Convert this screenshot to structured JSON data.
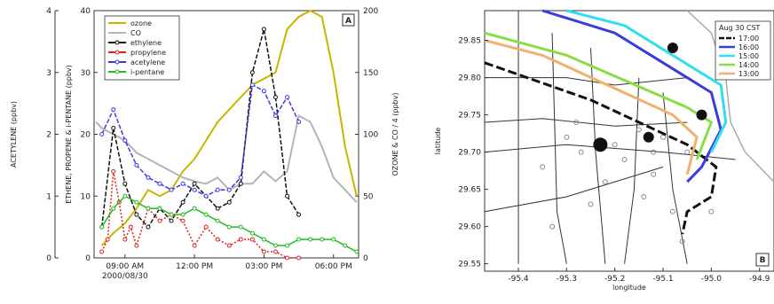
{
  "chart_data": [
    {
      "type": "line",
      "panel_label": "A",
      "yaxes": {
        "left_outer": {
          "label": "ACETYLENE (ppbv)",
          "ylim": [
            0,
            4
          ],
          "ticks": [
            "0",
            "1",
            "2",
            "3",
            "4"
          ]
        },
        "left_inner": {
          "label": "ETHENE, PROPENE & i-PENTANE (ppbv)",
          "ylim": [
            0,
            40
          ],
          "ticks": [
            "0",
            "10",
            "20",
            "30",
            "40"
          ]
        },
        "right": {
          "label": "OZONE & CO / 4 (ppbv)",
          "ylim": [
            0,
            200
          ],
          "ticks": [
            "0",
            "50",
            "100",
            "150",
            "200"
          ]
        }
      },
      "xaxis": {
        "ticks": [
          "09:00 AM",
          "12:00 PM",
          "03:00 PM",
          "06:00 PM"
        ],
        "date": "2000/08/30",
        "xlim": [
          "07:40",
          "19:05"
        ]
      },
      "legend": {
        "placement": "top",
        "entries": [
          "ozone",
          "CO",
          "ethylene",
          "propylene",
          "acetylene",
          "i-pentane"
        ]
      },
      "colors": {
        "ozone": "#c8b400",
        "CO": "#b4b4b4",
        "ethylene": "#111111",
        "propylene": "#e02020",
        "acetylene": "#3a3ae0",
        "i-pentane": "#22bb22"
      },
      "series": [
        {
          "name": "ozone",
          "axis": "right",
          "x": [
            "08:00",
            "08:30",
            "09:00",
            "09:30",
            "10:00",
            "10:30",
            "11:00",
            "11:30",
            "12:00",
            "12:30",
            "13:00",
            "13:30",
            "14:00",
            "14:30",
            "15:00",
            "15:30",
            "16:00",
            "16:30",
            "17:00",
            "17:30",
            "18:00",
            "18:30",
            "19:00"
          ],
          "y": [
            10,
            20,
            28,
            40,
            55,
            50,
            55,
            70,
            80,
            95,
            110,
            120,
            130,
            140,
            145,
            150,
            185,
            195,
            200,
            195,
            150,
            90,
            50
          ]
        },
        {
          "name": "CO",
          "axis": "right",
          "x": [
            "07:45",
            "08:00",
            "08:30",
            "09:00",
            "09:30",
            "10:00",
            "10:30",
            "11:00",
            "11:30",
            "12:00",
            "12:30",
            "13:00",
            "13:30",
            "14:00",
            "14:30",
            "15:00",
            "15:30",
            "16:00",
            "16:30",
            "17:00",
            "17:30",
            "18:00",
            "18:30",
            "19:00"
          ],
          "y": [
            110,
            105,
            100,
            95,
            85,
            80,
            75,
            70,
            65,
            62,
            60,
            65,
            55,
            60,
            60,
            70,
            62,
            70,
            115,
            110,
            90,
            65,
            55,
            45
          ]
        },
        {
          "name": "ethylene",
          "axis": "left_inner",
          "x": [
            "08:00",
            "08:30",
            "09:00",
            "09:30",
            "10:00",
            "10:30",
            "11:00",
            "11:30",
            "12:00",
            "12:30",
            "13:00",
            "13:30",
            "14:00",
            "14:30",
            "15:00",
            "15:30",
            "16:00",
            "16:30"
          ],
          "y": [
            5,
            21,
            12,
            7,
            5,
            8,
            6,
            9,
            12,
            10,
            8,
            9,
            12,
            30,
            37,
            26,
            10,
            7
          ]
        },
        {
          "name": "propylene",
          "axis": "left_inner",
          "x": [
            "08:00",
            "08:15",
            "08:30",
            "08:45",
            "09:00",
            "09:15",
            "09:30",
            "10:00",
            "10:30",
            "11:00",
            "11:30",
            "12:00",
            "12:30",
            "13:00",
            "13:30",
            "14:00",
            "14:30",
            "15:00",
            "15:30",
            "16:00",
            "16:30"
          ],
          "y": [
            1,
            3,
            14,
            9,
            3,
            5,
            2,
            8,
            6,
            7,
            6,
            2,
            5,
            3,
            2,
            3,
            3,
            1,
            1,
            0,
            0
          ]
        },
        {
          "name": "acetylene",
          "axis": "left_outer",
          "x": [
            "08:00",
            "08:30",
            "09:00",
            "09:30",
            "10:00",
            "10:30",
            "11:00",
            "11:30",
            "12:00",
            "12:30",
            "13:00",
            "13:30",
            "14:00",
            "14:30",
            "15:00",
            "15:30",
            "16:00",
            "16:30"
          ],
          "y": [
            2.0,
            2.4,
            1.9,
            1.5,
            1.3,
            1.2,
            1.1,
            1.2,
            1.1,
            1.0,
            1.1,
            1.1,
            1.3,
            2.8,
            2.7,
            2.3,
            2.6,
            2.2
          ]
        },
        {
          "name": "i-pentane",
          "axis": "left_inner",
          "x": [
            "08:00",
            "08:30",
            "09:00",
            "09:30",
            "10:00",
            "10:30",
            "11:00",
            "11:30",
            "12:00",
            "12:30",
            "13:00",
            "13:30",
            "14:00",
            "14:30",
            "15:00",
            "15:30",
            "16:00",
            "16:30",
            "17:00",
            "17:30",
            "18:00",
            "18:30",
            "19:00"
          ],
          "y": [
            5,
            8,
            10,
            9,
            8,
            8,
            7,
            7,
            8,
            7,
            6,
            5,
            5,
            4,
            3,
            2,
            2,
            3,
            3,
            3,
            3,
            2,
            1
          ]
        }
      ]
    },
    {
      "type": "map",
      "panel_label": "B",
      "xlabel": "longitude",
      "ylabel": "latitude",
      "xlim": [
        -95.47,
        -94.87
      ],
      "ylim": [
        29.54,
        29.89
      ],
      "xticks": [
        "-95.4",
        "-95.3",
        "-95.2",
        "-95.1",
        "-95.0",
        "-94.9"
      ],
      "yticks": [
        "29.55",
        "29.60",
        "29.65",
        "29.70",
        "29.75",
        "29.80",
        "29.85"
      ],
      "legend": {
        "title": "Aug 30 CST",
        "placement": "top-right",
        "entries": [
          "17:00",
          "16:00",
          "15:00",
          "14:00",
          "13:00"
        ]
      },
      "colors": {
        "17:00": "#111111",
        "16:00": "#3a3ae0",
        "15:00": "#33ddee",
        "14:00": "#88dd44",
        "13:00": "#f0b070"
      },
      "trajectories": [
        {
          "name": "17:00",
          "points": [
            [
              -95.47,
              29.82
            ],
            [
              -95.25,
              29.77
            ],
            [
              -95.05,
              29.71
            ],
            [
              -94.99,
              29.68
            ],
            [
              -95.0,
              29.64
            ],
            [
              -95.05,
              29.62
            ],
            [
              -95.06,
              29.59
            ]
          ]
        },
        {
          "name": "16:00",
          "points": [
            [
              -95.35,
              29.89
            ],
            [
              -95.2,
              29.86
            ],
            [
              -95.0,
              29.78
            ],
            [
              -94.98,
              29.73
            ],
            [
              -95.02,
              29.68
            ],
            [
              -95.05,
              29.66
            ]
          ]
        },
        {
          "name": "15:00",
          "points": [
            [
              -95.3,
              29.89
            ],
            [
              -95.18,
              29.87
            ],
            [
              -94.98,
              29.79
            ],
            [
              -94.97,
              29.74
            ],
            [
              -95.0,
              29.7
            ]
          ]
        },
        {
          "name": "14:00",
          "points": [
            [
              -95.47,
              29.86
            ],
            [
              -95.3,
              29.83
            ],
            [
              -95.05,
              29.76
            ],
            [
              -95.0,
              29.74
            ],
            [
              -95.03,
              29.69
            ]
          ]
        },
        {
          "name": "13:00",
          "points": [
            [
              -95.47,
              29.85
            ],
            [
              -95.35,
              29.83
            ],
            [
              -95.08,
              29.75
            ],
            [
              -95.03,
              29.72
            ],
            [
              -95.05,
              29.67
            ]
          ]
        }
      ],
      "markers": [
        {
          "lon": -95.23,
          "lat": 29.71,
          "r": 8
        },
        {
          "lon": -95.13,
          "lat": 29.72,
          "r": 6
        },
        {
          "lon": -95.02,
          "lat": 29.75,
          "r": 6
        },
        {
          "lon": -95.08,
          "lat": 29.84,
          "r": 6
        }
      ]
    }
  ]
}
